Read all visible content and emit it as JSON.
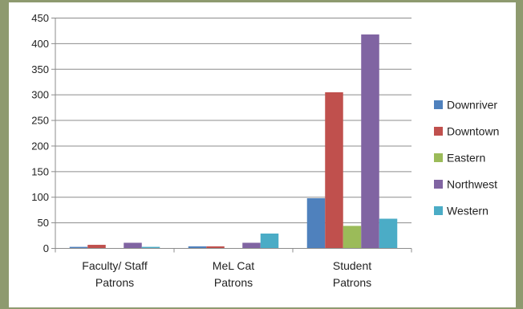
{
  "chart_data": {
    "type": "bar",
    "title": "",
    "xlabel": "",
    "ylabel": "",
    "categories": [
      [
        "Faculty/ Staff",
        "Patrons"
      ],
      [
        "MeL Cat",
        "Patrons"
      ],
      [
        "Student",
        "Patrons"
      ]
    ],
    "series": [
      {
        "name": "Downriver",
        "color": "#4f81bd",
        "values": [
          3,
          4,
          98
        ]
      },
      {
        "name": "Downtown",
        "color": "#c0504d",
        "values": [
          7,
          4,
          305
        ]
      },
      {
        "name": "Eastern",
        "color": "#9bbb59",
        "values": [
          0,
          0,
          44
        ]
      },
      {
        "name": "Northwest",
        "color": "#8064a2",
        "values": [
          11,
          11,
          418
        ]
      },
      {
        "name": "Western",
        "color": "#4bacc6",
        "values": [
          3,
          29,
          58
        ]
      }
    ],
    "ylim": [
      0,
      450
    ],
    "yticks": [
      0,
      50,
      100,
      150,
      200,
      250,
      300,
      350,
      400,
      450
    ],
    "grid": true,
    "legend": "right"
  }
}
